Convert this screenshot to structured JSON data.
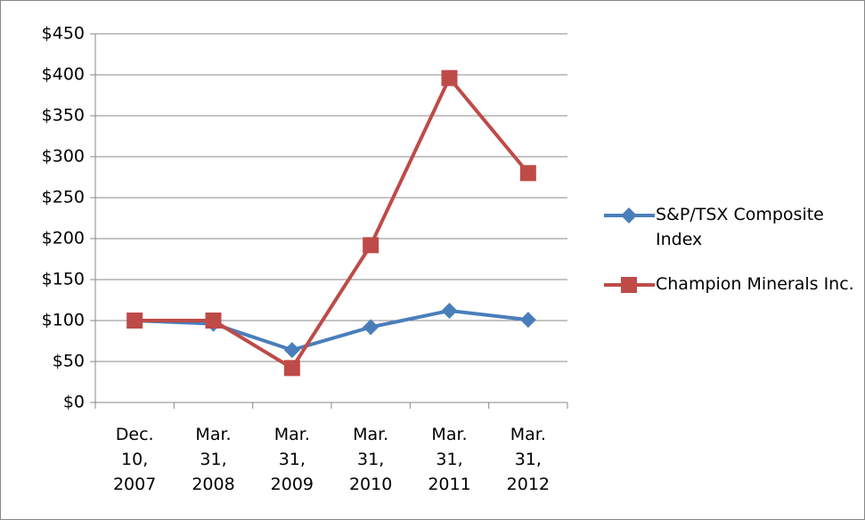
{
  "chart_data": {
    "type": "line",
    "categories": [
      "Dec. 10, 2007",
      "Mar. 31, 2008",
      "Mar. 31, 2009",
      "Mar. 31, 2010",
      "Mar. 31, 2011",
      "Mar. 31, 2012"
    ],
    "series": [
      {
        "name": "S&P/TSX Composite Index",
        "color": "#4a7ebb",
        "marker": "diamond",
        "values": [
          100,
          96,
          64,
          92,
          112,
          101
        ]
      },
      {
        "name": "Champion Minerals Inc.",
        "color": "#be4b48",
        "marker": "square",
        "values": [
          100,
          100,
          42,
          192,
          396,
          280
        ]
      }
    ],
    "ylim": [
      0,
      450
    ],
    "yticks": [
      {
        "value": 0,
        "label": "$0"
      },
      {
        "value": 50,
        "label": "$50"
      },
      {
        "value": 100,
        "label": "$100"
      },
      {
        "value": 150,
        "label": "$150"
      },
      {
        "value": 200,
        "label": "$200"
      },
      {
        "value": 250,
        "label": "$250"
      },
      {
        "value": 300,
        "label": "$300"
      },
      {
        "value": 350,
        "label": "$350"
      },
      {
        "value": 400,
        "label": "$400"
      },
      {
        "value": 450,
        "label": "$450"
      }
    ],
    "grid": true,
    "legend": "right"
  }
}
